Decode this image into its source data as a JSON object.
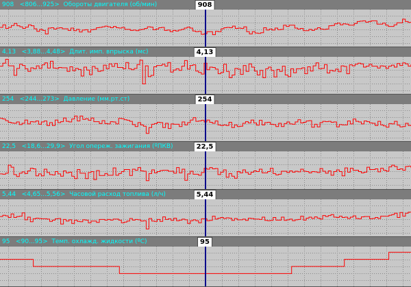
{
  "cursor_color": "#00008b",
  "trace_color": "#ff0000",
  "header_text_color": "#00ffff",
  "charts": [
    {
      "value": "908",
      "range": "<806...925>",
      "label": "Обороты двигателя (об/мин)",
      "trace": [
        0.52,
        0.6,
        0.49,
        0.52,
        0.58,
        0.64,
        0.57,
        0.54,
        0.49,
        0.53,
        0.6,
        0.57,
        0.48,
        0.4,
        0.46,
        0.43,
        0.32,
        0.5,
        0.51,
        0.47,
        0.5,
        0.51,
        0.48,
        0.48,
        0.43,
        0.5,
        0.42,
        0.46,
        0.38,
        0.44,
        0.45,
        0.38,
        0.45,
        0.46,
        0.51,
        0.52,
        0.54,
        0.56,
        0.54,
        0.51,
        0.55,
        0.51,
        0.5,
        0.52,
        0.46,
        0.46,
        0.43,
        0.44,
        0.42,
        0.45,
        0.46,
        0.49,
        0.54,
        0.53,
        0.45,
        0.47,
        0.51,
        0.52,
        0.43,
        0.44,
        0.39,
        0.43,
        0.41,
        0.44,
        0.46,
        0.5,
        0.53,
        0.5,
        0.41,
        0.39,
        0.4,
        0.31,
        0.33,
        0.39,
        0.39,
        0.3,
        0.4,
        0.39,
        0.48,
        0.51,
        0.52,
        0.51,
        0.56,
        0.49,
        0.5,
        0.49,
        0.54,
        0.39,
        0.32,
        0.39,
        0.35,
        0.34,
        0.36,
        0.51,
        0.44,
        0.47,
        0.44,
        0.5,
        0.45,
        0.46,
        0.59,
        0.55,
        0.59,
        0.59,
        0.5,
        0.47,
        0.49,
        0.42,
        0.42,
        0.46,
        0.43,
        0.47,
        0.51,
        0.47,
        0.46,
        0.47,
        0.57,
        0.58,
        0.63,
        0.65,
        0.6,
        0.63,
        0.62,
        0.59,
        0.59,
        0.64,
        0.7,
        0.71,
        0.72,
        0.68,
        0.7,
        0.72,
        0.72,
        0.62,
        0.62,
        0.65,
        0.59,
        0.55,
        0.55,
        0.6,
        0.66,
        0.66,
        0.77,
        0.7,
        0.67,
        0.69
      ],
      "trace_range": [
        0,
        1
      ]
    },
    {
      "value": "4,13",
      "range": "<3,88...4,48>",
      "label": "Длит. имп. впрыска (мс)",
      "trace": [
        0.78,
        0.87,
        0.99,
        0.79,
        0.79,
        0.5,
        0.71,
        0.84,
        0.8,
        0.7,
        0.62,
        0.73,
        0.7,
        0.79,
        0.71,
        0.82,
        0.88,
        0.72,
        0.93,
        0.72,
        0.71,
        0.74,
        0.73,
        0.73,
        0.62,
        0.76,
        0.64,
        0.71,
        0.68,
        0.48,
        0.75,
        0.66,
        0.52,
        0.77,
        0.71,
        0.62,
        0.64,
        0.81,
        0.7,
        0.85,
        0.77,
        0.86,
        0.74,
        0.74,
        0.7,
        0.89,
        0.7,
        0.67,
        0.71,
        0.83,
        0.96,
        0.24,
        0.79,
        0.46,
        0.5,
        0.76,
        0.8,
        0.8,
        0.84,
        0.78,
        0.89,
        0.6,
        0.66,
        0.7,
        0.65,
        0.78,
        0.95,
        0.69,
        0.8,
        0.82,
        0.63,
        0.59,
        0.54,
        0.87,
        0.67,
        0.75,
        0.74,
        0.69,
        0.55,
        0.59,
        0.84,
        0.62,
        0.43,
        0.51,
        0.71,
        0.69,
        0.53,
        0.8,
        0.62,
        0.85,
        0.75,
        0.63,
        0.51,
        0.65,
        0.43,
        0.7,
        0.75,
        0.65,
        0.45,
        0.68,
        0.62,
        0.78,
        0.51,
        0.46,
        0.7,
        0.58,
        0.7,
        0.7,
        0.73,
        0.55,
        0.76,
        0.63,
        0.79,
        0.88,
        0.7,
        0.71,
        0.83,
        0.57,
        0.65,
        0.63,
        0.69,
        0.61,
        0.79,
        0.77,
        0.55,
        0.82,
        0.79,
        0.84,
        0.87,
        0.85,
        0.75,
        0.78,
        0.84,
        0.78,
        0.78,
        0.72,
        0.79,
        0.78,
        0.71,
        0.78,
        0.81,
        0.75,
        0.86,
        0.8,
        0.88,
        0.85,
        0.78,
        0.84
      ],
      "trace_range": [
        0,
        1
      ]
    },
    {
      "value": "254",
      "range": "<244...273>",
      "label": "Давление (мм.рт.ст)",
      "trace": [
        0.63,
        0.61,
        0.56,
        0.51,
        0.49,
        0.48,
        0.52,
        0.44,
        0.48,
        0.58,
        0.46,
        0.53,
        0.52,
        0.55,
        0.45,
        0.52,
        0.55,
        0.41,
        0.5,
        0.41,
        0.58,
        0.5,
        0.53,
        0.64,
        0.54,
        0.52,
        0.61,
        0.7,
        0.55,
        0.7,
        0.6,
        0.62,
        0.57,
        0.64,
        0.53,
        0.53,
        0.47,
        0.56,
        0.47,
        0.46,
        0.53,
        0.52,
        0.46,
        0.63,
        0.62,
        0.59,
        0.57,
        0.54,
        0.44,
        0.38,
        0.5,
        0.43,
        0.39,
        0.17,
        0.35,
        0.45,
        0.47,
        0.51,
        0.5,
        0.35,
        0.48,
        0.32,
        0.46,
        0.45,
        0.45,
        0.38,
        0.52,
        0.43,
        0.5,
        0.58,
        0.65,
        0.54,
        0.55,
        0.57,
        0.52,
        0.58,
        0.51,
        0.48,
        0.55,
        0.43,
        0.41,
        0.43,
        0.41,
        0.51,
        0.35,
        0.43,
        0.38,
        0.39,
        0.48,
        0.53,
        0.49,
        0.58,
        0.49,
        0.42,
        0.57,
        0.43,
        0.5,
        0.51,
        0.45,
        0.44,
        0.38,
        0.48,
        0.38,
        0.47,
        0.52,
        0.46,
        0.45,
        0.52,
        0.59,
        0.49,
        0.51,
        0.55,
        0.56,
        0.36,
        0.45,
        0.37,
        0.5,
        0.54,
        0.53,
        0.54,
        0.51,
        0.52,
        0.37,
        0.44,
        0.43,
        0.43,
        0.55,
        0.46,
        0.61,
        0.54,
        0.52,
        0.46,
        0.55,
        0.53,
        0.49,
        0.48,
        0.41,
        0.54,
        0.43,
        0.4,
        0.36,
        0.47,
        0.46,
        0.54,
        0.42,
        0.37,
        0.38,
        0.48,
        0.41,
        0.44
      ],
      "trace_range": [
        0,
        1
      ]
    },
    {
      "value": "22,5",
      "range": "<18,6...29,9>",
      "label": "Угол опереж. зажигания (ºПКВ)",
      "trace": [
        0.39,
        0.38,
        0.41,
        0.65,
        0.59,
        0.37,
        0.31,
        0.41,
        0.45,
        0.4,
        0.48,
        0.56,
        0.54,
        0.33,
        0.39,
        0.33,
        0.53,
        0.43,
        0.37,
        0.36,
        0.46,
        0.39,
        0.32,
        0.48,
        0.42,
        0.44,
        0.32,
        0.25,
        0.52,
        0.41,
        0.41,
        0.25,
        0.43,
        0.46,
        0.22,
        0.49,
        0.34,
        0.34,
        0.4,
        0.35,
        0.35,
        0.57,
        0.35,
        0.4,
        0.46,
        0.52,
        0.52,
        0.34,
        0.53,
        0.5,
        0.58,
        0.48,
        0.47,
        0.19,
        0.4,
        0.51,
        0.42,
        0.46,
        0.49,
        0.5,
        0.5,
        0.47,
        0.47,
        0.41,
        0.58,
        0.42,
        0.53,
        0.2,
        0.39,
        0.47,
        0.38,
        0.38,
        0.35,
        0.43,
        0.56,
        0.53,
        0.58,
        0.54,
        0.55,
        0.37,
        0.44,
        0.51,
        0.29,
        0.4,
        0.32,
        0.26,
        0.46,
        0.42,
        0.51,
        0.43,
        0.38,
        0.44,
        0.48,
        0.46,
        0.53,
        0.42,
        0.42,
        0.46,
        0.56,
        0.4,
        0.36,
        0.38,
        0.47,
        0.47,
        0.43,
        0.48,
        0.44,
        0.47,
        0.45,
        0.53,
        0.47,
        0.46,
        0.42,
        0.46,
        0.45,
        0.43,
        0.55,
        0.47,
        0.41,
        0.48,
        0.35,
        0.46,
        0.51,
        0.46,
        0.33,
        0.57,
        0.44,
        0.56,
        0.5,
        0.5,
        0.46,
        0.42,
        0.44,
        0.59,
        0.52,
        0.52,
        0.54,
        0.45,
        0.56,
        0.5,
        0.47,
        0.6,
        0.65,
        0.61,
        0.52,
        0.54,
        0.5,
        0.61,
        0.62,
        0.57
      ],
      "trace_range": [
        0,
        1
      ]
    },
    {
      "value": "5,44",
      "range": "<4,65...5,56>",
      "label": "Часовой расход топлива (л/ч)",
      "trace": [
        0.54,
        0.58,
        0.56,
        0.51,
        0.62,
        0.51,
        0.54,
        0.55,
        0.65,
        0.44,
        0.52,
        0.38,
        0.47,
        0.49,
        0.48,
        0.47,
        0.47,
        0.46,
        0.39,
        0.43,
        0.47,
        0.48,
        0.31,
        0.45,
        0.4,
        0.44,
        0.33,
        0.43,
        0.39,
        0.38,
        0.44,
        0.43,
        0.35,
        0.4,
        0.4,
        0.36,
        0.45,
        0.45,
        0.43,
        0.45,
        0.43,
        0.46,
        0.46,
        0.43,
        0.35,
        0.37,
        0.4,
        0.48,
        0.43,
        0.45,
        0.44,
        0.4,
        0.41,
        0.16,
        0.48,
        0.4,
        0.39,
        0.45,
        0.39,
        0.53,
        0.45,
        0.47,
        0.42,
        0.49,
        0.41,
        0.43,
        0.46,
        0.44,
        0.33,
        0.41,
        0.44,
        0.41,
        0.35,
        0.47,
        0.47,
        0.41,
        0.42,
        0.55,
        0.46,
        0.49,
        0.51,
        0.48,
        0.5,
        0.49,
        0.42,
        0.48,
        0.44,
        0.44,
        0.46,
        0.42,
        0.49,
        0.48,
        0.46,
        0.46,
        0.45,
        0.52,
        0.42,
        0.41,
        0.42,
        0.51,
        0.43,
        0.43,
        0.52,
        0.42,
        0.44,
        0.46,
        0.41,
        0.44,
        0.45,
        0.55,
        0.43,
        0.49,
        0.52,
        0.48,
        0.53,
        0.49,
        0.46,
        0.57,
        0.54,
        0.57,
        0.6,
        0.52,
        0.51,
        0.55,
        0.51,
        0.52,
        0.48,
        0.52,
        0.56,
        0.48,
        0.47,
        0.53,
        0.54,
        0.54,
        0.47,
        0.48,
        0.51,
        0.48,
        0.55,
        0.55,
        0.55,
        0.58,
        0.6,
        0.64,
        0.51,
        0.66,
        0.55,
        0.64,
        0.67,
        0.68
      ],
      "trace_range": [
        0,
        1
      ]
    },
    {
      "value": "95",
      "range": "<90...95>",
      "label": "Темп. охлажд. жидкости (ºС)",
      "trace": [
        0.7,
        0.7,
        0.7,
        0.7,
        0.7,
        0.7,
        0.7,
        0.7,
        0.7,
        0.7,
        0.7,
        0.7,
        0.5,
        0.5,
        0.5,
        0.5,
        0.5,
        0.5,
        0.5,
        0.5,
        0.5,
        0.5,
        0.5,
        0.5,
        0.5,
        0.5,
        0.5,
        0.5,
        0.5,
        0.5,
        0.5,
        0.5,
        0.5,
        0.5,
        0.5,
        0.5,
        0.5,
        0.5,
        0.5,
        0.5,
        0.5,
        0.5,
        0.5,
        0.3,
        0.3,
        0.3,
        0.3,
        0.3,
        0.3,
        0.3,
        0.3,
        0.3,
        0.3,
        0.3,
        0.3,
        0.3,
        0.3,
        0.3,
        0.3,
        0.3,
        0.3,
        0.3,
        0.3,
        0.3,
        0.3,
        0.3,
        0.3,
        0.3,
        0.3,
        0.3,
        0.3,
        0.3,
        0.3,
        0.3,
        0.3,
        0.3,
        0.3,
        0.3,
        0.3,
        0.3,
        0.3,
        0.3,
        0.3,
        0.3,
        0.3,
        0.3,
        0.3,
        0.3,
        0.3,
        0.3,
        0.3,
        0.3,
        0.3,
        0.3,
        0.3,
        0.3,
        0.3,
        0.3,
        0.3,
        0.3,
        0.3,
        0.3,
        0.3,
        0.3,
        0.3,
        0.5,
        0.5,
        0.5,
        0.5,
        0.5,
        0.5,
        0.5,
        0.5,
        0.5,
        0.5,
        0.5,
        0.5,
        0.5,
        0.5,
        0.5,
        0.5,
        0.5,
        0.5,
        0.5,
        0.7,
        0.7,
        0.7,
        0.7,
        0.7,
        0.7,
        0.7,
        0.7,
        0.7,
        0.7,
        0.7,
        0.7,
        0.7,
        0.7,
        0.7,
        0.7,
        0.9,
        0.9,
        0.9,
        0.9,
        0.9,
        0.9,
        0.9,
        0.9,
        0.9
      ],
      "trace_range": [
        0,
        1
      ]
    }
  ]
}
